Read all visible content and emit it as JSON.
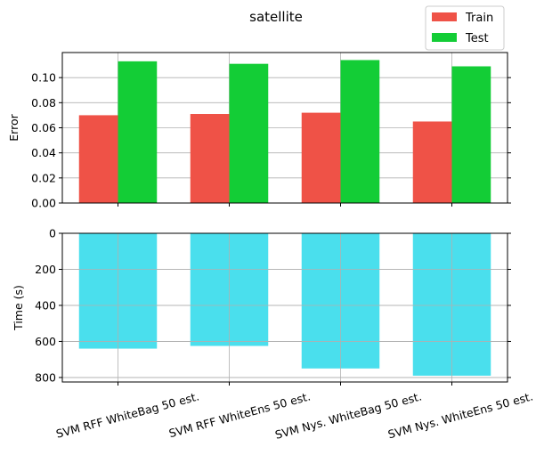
{
  "chart_data": [
    {
      "type": "bar",
      "title": "satellite",
      "ylabel": "Error",
      "categories": [
        "SVM RFF WhiteBag 50 est.",
        "SVM RFF WhiteEns 50 est.",
        "SVM Nys. WhiteBag 50 est.",
        "SVM Nys. WhiteEns 50 est."
      ],
      "series": [
        {
          "name": "Train",
          "color": "#ef5247",
          "values": [
            0.07,
            0.071,
            0.072,
            0.065
          ]
        },
        {
          "name": "Test",
          "color": "#13cd36",
          "values": [
            0.113,
            0.111,
            0.114,
            0.109
          ]
        }
      ],
      "ylim": [
        0,
        0.12
      ],
      "yticks": [
        0.0,
        0.02,
        0.04,
        0.06,
        0.08,
        0.1
      ],
      "ytick_labels": [
        "0.00",
        "0.02",
        "0.04",
        "0.06",
        "0.08",
        "0.10"
      ],
      "grid": true,
      "legend": "top-right (above plot)"
    },
    {
      "type": "bar",
      "ylabel": "Time (s)",
      "categories": [
        "SVM RFF WhiteBag 50 est.",
        "SVM RFF WhiteEns 50 est.",
        "SVM Nys. WhiteBag 50 est.",
        "SVM Nys. WhiteEns 50 est."
      ],
      "series": [
        {
          "color": "#4adfed",
          "values": [
            640,
            625,
            750,
            790
          ]
        }
      ],
      "ylim": [
        0,
        825
      ],
      "y_inverted": true,
      "yticks": [
        0,
        200,
        400,
        600,
        800
      ],
      "ytick_labels": [
        "0",
        "200",
        "400",
        "600",
        "800"
      ],
      "grid": true
    }
  ]
}
